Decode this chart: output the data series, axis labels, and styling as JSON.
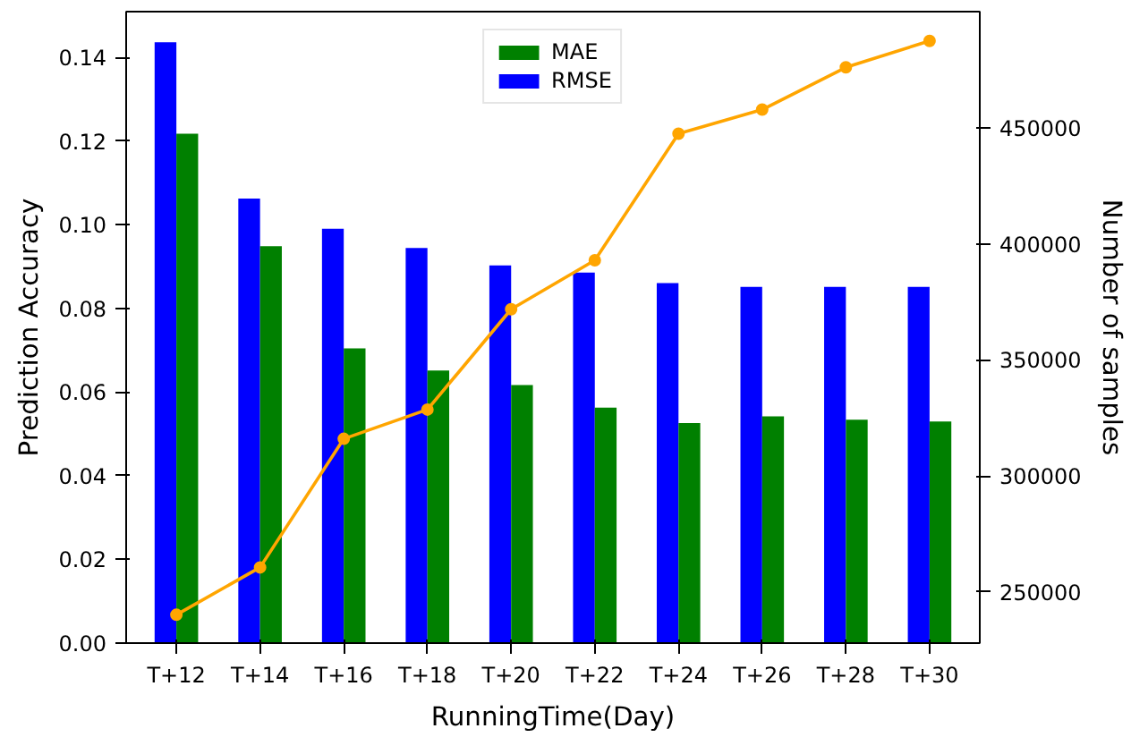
{
  "chart_data": {
    "type": "bar",
    "xlabel": "RunningTime(Day)",
    "ylabel": "Prediction Accuracy",
    "y2label": "Number of samples",
    "categories": [
      "T+12",
      "T+14",
      "T+16",
      "T+18",
      "T+20",
      "T+22",
      "T+24",
      "T+26",
      "T+28",
      "T+30"
    ],
    "series": [
      {
        "name": "RMSE",
        "color": "#0000ff",
        "values": [
          0.1437,
          0.1063,
          0.0991,
          0.0945,
          0.0903,
          0.0886,
          0.0861,
          0.0852,
          0.0852,
          0.0852
        ]
      },
      {
        "name": "MAE",
        "color": "#008000",
        "values": [
          0.1218,
          0.0949,
          0.0705,
          0.0652,
          0.0617,
          0.0563,
          0.0526,
          0.0542,
          0.0534,
          0.053
        ]
      },
      {
        "type": "line",
        "axis": "y2",
        "color": "#ffa500",
        "marker": "circle",
        "values": [
          240200,
          260600,
          316000,
          328600,
          371800,
          392900,
          447400,
          457800,
          476000,
          487400
        ]
      }
    ],
    "ylim": [
      0,
      0.151
    ],
    "yticks": [
      {
        "value": 0,
        "label": "0.00"
      },
      0.02,
      0.04,
      0.06,
      0.08,
      {
        "value": 0.1,
        "label": "0.10"
      },
      0.12,
      0.14
    ],
    "y2lim": [
      228000,
      500000
    ],
    "y2ticks": [
      250000,
      300000,
      350000,
      400000,
      450000
    ],
    "grid": false,
    "legend": "top"
  }
}
